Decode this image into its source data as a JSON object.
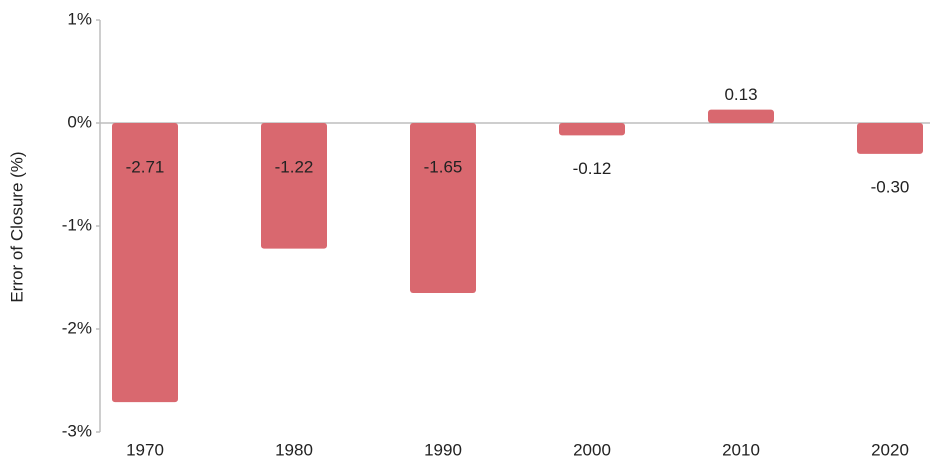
{
  "chart_data": {
    "type": "bar",
    "y_label": "Error of Closure (%)",
    "categories": [
      "1970",
      "1980",
      "1990",
      "2000",
      "2010",
      "2020"
    ],
    "values": [
      -2.71,
      -1.22,
      -1.65,
      -0.12,
      0.13,
      -0.3
    ],
    "value_labels": [
      "-2.71",
      "-1.22",
      "-1.65",
      "-0.12",
      "0.13",
      "-0.30"
    ],
    "color": "#d9686f",
    "ylim": [
      -3,
      1
    ],
    "yticks": [
      {
        "value": -3,
        "label": "-3%"
      },
      {
        "value": -2,
        "label": "-2%"
      },
      {
        "value": -1,
        "label": "-1%"
      },
      {
        "value": 0,
        "label": "0%"
      },
      {
        "value": 1,
        "label": "1%"
      }
    ]
  }
}
